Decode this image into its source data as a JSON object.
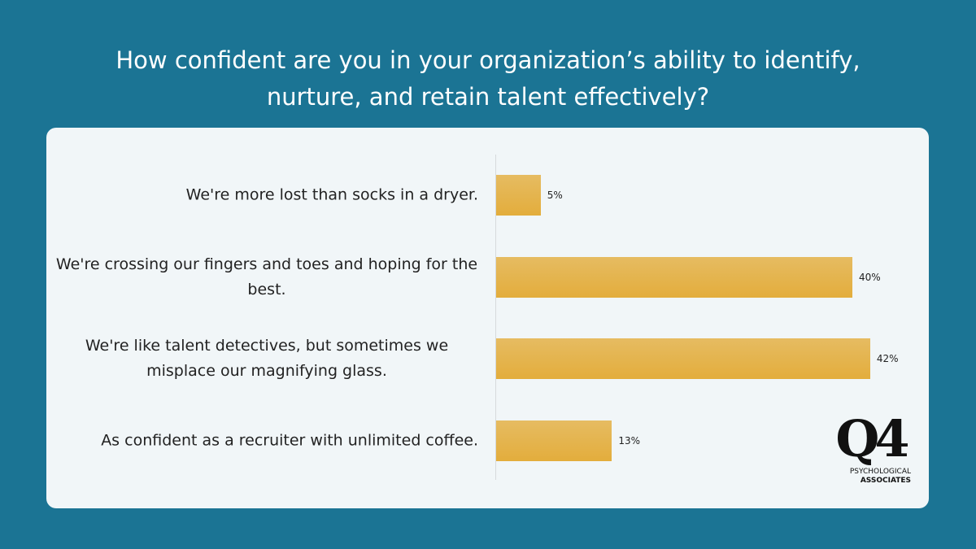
{
  "chart_data": {
    "type": "bar",
    "orientation": "horizontal",
    "title": "How confident are you in your organization’s ability to identify, nurture, and retain talent effectively?",
    "categories": [
      "We're more lost than socks in a dryer.",
      "We're crossing our fingers and toes and hoping for the best.",
      "We're like talent detectives, but sometimes we misplace our magnifying glass.",
      "As confident as a recruiter with unlimited coffee."
    ],
    "values": [
      5,
      40,
      42,
      13
    ],
    "value_labels": [
      "5%",
      "40%",
      "42%",
      "13%"
    ],
    "color": "#e3ad3c"
  },
  "logo": {
    "mark": "Q4",
    "line1": "PSYCHOLOGICAL",
    "line2": "ASSOCIATES"
  }
}
